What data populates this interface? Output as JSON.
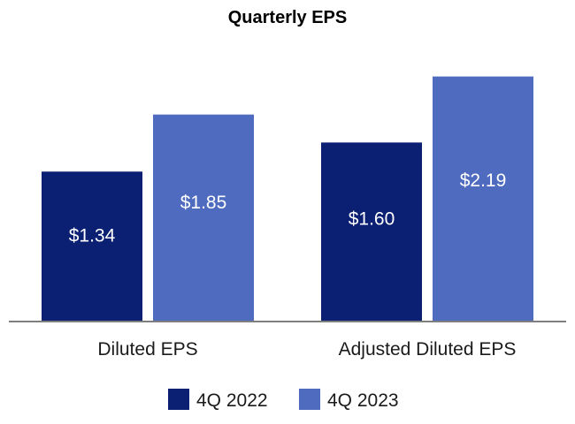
{
  "chart_data": {
    "type": "bar",
    "title": "Quarterly EPS",
    "categories": [
      "Diluted EPS",
      "Adjusted Diluted EPS"
    ],
    "series": [
      {
        "name": "4Q 2022",
        "color": "#0b1f73",
        "values": [
          1.34,
          1.6
        ],
        "labels": [
          "$1.34",
          "$1.60"
        ]
      },
      {
        "name": "4Q 2023",
        "color": "#4f6bbf",
        "values": [
          1.85,
          2.19
        ],
        "labels": [
          "$1.85",
          "$2.19"
        ]
      }
    ],
    "ylim": [
      0,
      2.4
    ],
    "xlabel": "",
    "ylabel": "",
    "grid": false,
    "legend": "bottom-center"
  }
}
